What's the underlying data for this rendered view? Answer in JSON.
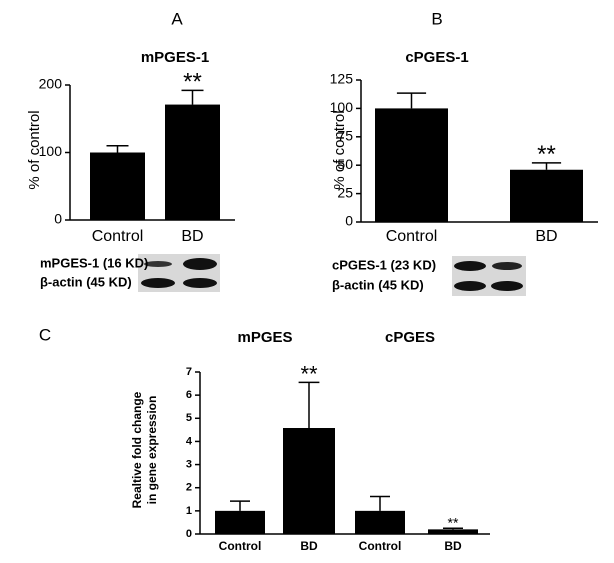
{
  "chart_data": [
    {
      "type": "bar",
      "panel": "A",
      "title": "mPGES-1",
      "ylabel": [
        "% of control"
      ],
      "categories": [
        "Control",
        "BD"
      ],
      "values": [
        100,
        171
      ],
      "errors": [
        10,
        21
      ],
      "annotations": [
        null,
        "**"
      ],
      "color": "#000000",
      "ylim": [
        0,
        200
      ],
      "yticks": [
        0,
        100,
        200
      ],
      "blot_labels": [
        "mPGES-1 (16 KD)",
        "β-actin (45 KD)"
      ]
    },
    {
      "type": "bar",
      "panel": "B",
      "title": "cPGES-1",
      "ylabel": [
        "% of control"
      ],
      "categories": [
        "Control",
        "BD"
      ],
      "values": [
        100,
        46
      ],
      "errors": [
        13.5,
        6
      ],
      "annotations": [
        null,
        "**"
      ],
      "color": "#000000",
      "ylim": [
        0,
        125
      ],
      "yticks": [
        0,
        25,
        50,
        75,
        100,
        125
      ],
      "blot_labels": [
        "cPGES-1 (23 KD)",
        "β-actin (45 KD)"
      ]
    },
    {
      "type": "bar",
      "panel": "C",
      "groups": [
        "mPGES",
        "cPGES"
      ],
      "ylabel": [
        "Realtive fold change",
        "in gene expression"
      ],
      "categories": [
        "Control",
        "BD",
        "Control",
        "BD"
      ],
      "values": [
        1.0,
        4.58,
        1.0,
        0.2
      ],
      "errors": [
        0.42,
        1.97,
        0.62,
        0.05
      ],
      "annotations": [
        null,
        "**",
        null,
        "**"
      ],
      "color": "#000000",
      "ylim": [
        0,
        7
      ],
      "yticks": [
        0,
        1,
        2,
        3,
        4,
        5,
        6,
        7
      ]
    }
  ]
}
